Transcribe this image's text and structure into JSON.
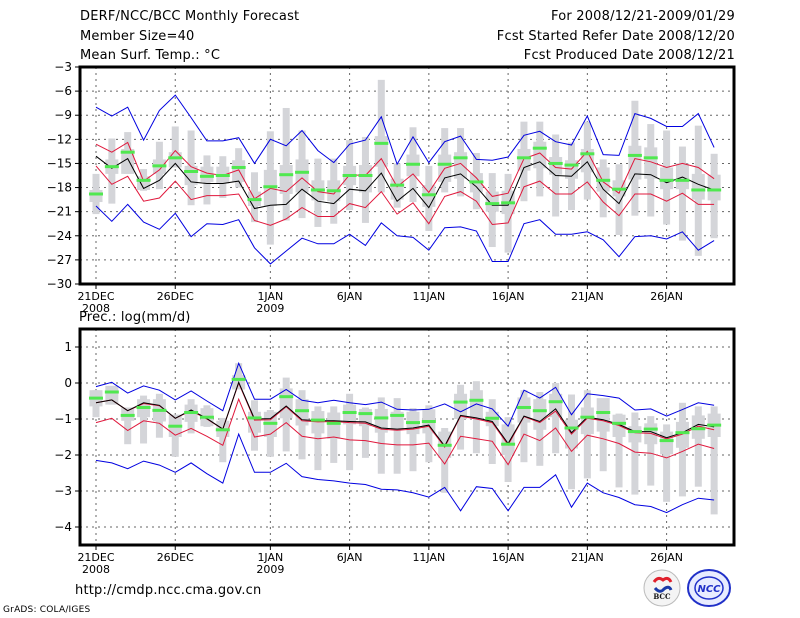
{
  "header": {
    "title": "DERF/NCC/BCC Monthly Forecast",
    "member_size": "Member Size=40",
    "top_variable": "Mean Surf. Temp.: °C",
    "period": "For 2008/12/21-2009/01/29",
    "started": "Fcst Started Refer Date 2008/12/20",
    "produced": "Fcst Produced Date 2008/12/21"
  },
  "footer": {
    "url": "http://cmdp.ncc.cma.gov.cn",
    "credit": "GrADS: COLA/IGES",
    "logos": [
      "BCC",
      "NCC"
    ]
  },
  "colors": {
    "mean": "#000000",
    "inner_band": "#e0183c",
    "outer_band": "#0000e0",
    "box": "#d4d5d9",
    "median": "#50e850",
    "grid": "#555555"
  },
  "chart_data": [
    {
      "type": "line",
      "title": "Mean Surf. Temp.: °C",
      "ylabel": "°C",
      "ylim": [
        -30,
        -3
      ],
      "yticks": [
        -3,
        -6,
        -9,
        -12,
        -15,
        -18,
        -21,
        -24,
        -27,
        -30
      ],
      "xtick_labels": [
        "21DEC",
        "26DEC",
        "1JAN",
        "6JAN",
        "11JAN",
        "16JAN",
        "21JAN",
        "26JAN"
      ],
      "xtick_days": [
        0,
        5,
        11,
        16,
        21,
        26,
        31,
        36
      ],
      "year_labels": [
        {
          "day": 0,
          "label": "2008"
        },
        {
          "day": 11,
          "label": "2009"
        }
      ],
      "grid": true,
      "n_days": 40,
      "series": [
        {
          "name": "max",
          "color": "#0000e0",
          "values": [
            -8,
            -9.1,
            -8,
            -12.1,
            -8.4,
            -6.5,
            -9.3,
            -12.2,
            -12.2,
            -11.8,
            -15,
            -12,
            -12.8,
            -10.9,
            -13.4,
            -14.9,
            -12.6,
            -12.1,
            -9.2,
            -15.1,
            -11.7,
            -14.9,
            -12.3,
            -11.6,
            -14.5,
            -14.6,
            -14.2,
            -11.5,
            -11.0,
            -12.3,
            -12.7,
            -9.1,
            -13.9,
            -14.0,
            -8.8,
            -9.4,
            -10.4,
            -10.4,
            -8.8,
            -13
          ]
        },
        {
          "name": "upper",
          "color": "#e0183c",
          "values": [
            -12.6,
            -13.6,
            -12.4,
            -17.2,
            -15.8,
            -13.4,
            -15.4,
            -16.2,
            -16.5,
            -15.8,
            -19.4,
            -18.1,
            -18.5,
            -16.8,
            -18.5,
            -18.8,
            -16.4,
            -16.5,
            -14.4,
            -17.9,
            -16.3,
            -18.6,
            -15.6,
            -15,
            -16.8,
            -19.1,
            -18.7,
            -14.4,
            -13.7,
            -15.5,
            -15.7,
            -13.5,
            -17.3,
            -18.7,
            -14.4,
            -14.8,
            -15.5,
            -15,
            -15.5,
            -16.9
          ]
        },
        {
          "name": "mean",
          "color": "#000000",
          "values": [
            -14.1,
            -15.6,
            -14.4,
            -18.1,
            -17.1,
            -15,
            -17.3,
            -17.5,
            -17.5,
            -17.2,
            -20.6,
            -20.2,
            -20.1,
            -18.2,
            -19.7,
            -20,
            -18.2,
            -18.4,
            -16.2,
            -19.7,
            -18.1,
            -20.5,
            -16.8,
            -16.3,
            -17.9,
            -20.2,
            -20.2,
            -15.5,
            -14.8,
            -16.5,
            -16.6,
            -14.8,
            -18.2,
            -20,
            -16.3,
            -16.4,
            -17.4,
            -16.7,
            -17.6,
            -18.3
          ]
        },
        {
          "name": "lower",
          "color": "#e0183c",
          "values": [
            -15.3,
            -17.6,
            -16.6,
            -19.7,
            -19.3,
            -17.2,
            -19.5,
            -19,
            -19,
            -18.8,
            -22.1,
            -22.7,
            -21.9,
            -20.5,
            -21.6,
            -21.6,
            -20,
            -20.5,
            -18.5,
            -21.3,
            -19.9,
            -22.5,
            -19.1,
            -18.5,
            -19.7,
            -22.6,
            -22.4,
            -17.9,
            -17.2,
            -18.8,
            -18.8,
            -17.3,
            -19.8,
            -21.5,
            -18.8,
            -18.8,
            -19.7,
            -18.7,
            -20.1,
            -20.1
          ]
        },
        {
          "name": "min",
          "color": "#0000e0",
          "values": [
            -20.3,
            -22.2,
            -20.1,
            -22.3,
            -23.2,
            -21.2,
            -24.1,
            -22.5,
            -22.6,
            -22,
            -25.5,
            -27.5,
            -25.9,
            -24.3,
            -25,
            -25,
            -23.8,
            -25.2,
            -22.4,
            -24,
            -24.2,
            -25.8,
            -23,
            -22.9,
            -23.4,
            -27.2,
            -27.2,
            -22.5,
            -22,
            -23.8,
            -23.8,
            -23.5,
            -24.5,
            -26.6,
            -24.1,
            -24,
            -24.4,
            -23.5,
            -25.8,
            -24.6
          ]
        },
        {
          "name": "median",
          "color": "#50e850",
          "values": [
            -18.8,
            -15.4,
            -13.6,
            -17.1,
            -15.3,
            -14.3,
            -16,
            -16.6,
            -16.5,
            -15.5,
            -19.5,
            -17.9,
            -16.4,
            -16.1,
            -18.3,
            -18.4,
            -16.5,
            -16.5,
            -12.5,
            -17.7,
            -15.1,
            -18.9,
            -15.1,
            -14.3,
            -17.3,
            -20,
            -19.9,
            -14.3,
            -13.1,
            -15,
            -15.2,
            -13.8,
            -17.1,
            -18.2,
            -14,
            -14.3,
            -17.1,
            -17.1,
            -18.3,
            -18.3
          ]
        },
        {
          "name": "box_inner",
          "color": "#d4d5d9",
          "values_low": [
            -19.8,
            -16.3,
            -16.3,
            -18.3,
            -16.3,
            -15.5,
            -17.7,
            -17.3,
            -17.5,
            -17.3,
            -20.3,
            -20.3,
            -18.8,
            -18.6,
            -19.6,
            -19.7,
            -17.7,
            -18.6,
            -15.4,
            -19.5,
            -16.6,
            -20.4,
            -17.3,
            -16.9,
            -18.6,
            -21,
            -21.3,
            -15.9,
            -15.6,
            -16.4,
            -16.9,
            -16.1,
            -18.5,
            -19.1,
            -17,
            -16.9,
            -18.2,
            -18.2,
            -19.5,
            -19.6
          ],
          "values_high": [
            -18.3,
            -14.5,
            -13.2,
            -16.6,
            -14.5,
            -13.6,
            -15.3,
            -15.4,
            -15.4,
            -14.6,
            -18.5,
            -15.8,
            -15.2,
            -14.5,
            -17.1,
            -17.1,
            -15.3,
            -15.2,
            -11.6,
            -16.9,
            -13.9,
            -17.7,
            -13.9,
            -13.6,
            -16.2,
            -18.5,
            -18.4,
            -13.2,
            -12.3,
            -14.2,
            -14.6,
            -13.2,
            -15.5,
            -17.1,
            -12.8,
            -13,
            -15.5,
            -15,
            -16.3,
            -16.4
          ]
        },
        {
          "name": "box_outer",
          "color": "#d4d5d9",
          "values_low": [
            -21.3,
            -20,
            -16.3,
            -18.4,
            -18.2,
            -15.3,
            -20.2,
            -20.1,
            -19.3,
            -18,
            -22.3,
            -25.1,
            -22.1,
            -21.8,
            -22.9,
            -22.5,
            -20.8,
            -22.4,
            -18.6,
            -20.5,
            -19.8,
            -23.4,
            -18.6,
            -19.1,
            -20.7,
            -25.4,
            -26.1,
            -19.7,
            -19.1,
            -21.6,
            -20.8,
            -19.5,
            -21.7,
            -23.9,
            -21.5,
            -21.6,
            -22.6,
            -24.6,
            -26.5,
            -24.3
          ],
          "values_high": [
            -16.3,
            -11.9,
            -11.1,
            -15.7,
            -12.3,
            -10.4,
            -10.9,
            -14,
            -14.1,
            -13.1,
            -16.1,
            -11,
            -8.1,
            -10.9,
            -14.4,
            -14.4,
            -12.1,
            -11.7,
            -4.6,
            -15,
            -10.5,
            -15.3,
            -10.6,
            -10.6,
            -13.7,
            -16.2,
            -16.3,
            -9.8,
            -9.8,
            -11.4,
            -12.4,
            -9.8,
            -14.5,
            -15.1,
            -7.2,
            -10.1,
            -10.9,
            -12.9,
            -10.3,
            -13.8
          ]
        }
      ]
    },
    {
      "type": "line",
      "title": "Prec.: log(mm/d)",
      "ylabel": "log(mm/d)",
      "ylim": [
        -4.5,
        1.5
      ],
      "yticks": [
        1,
        0,
        -1,
        -2,
        -3,
        -4
      ],
      "xtick_labels": [
        "21DEC",
        "26DEC",
        "1JAN",
        "6JAN",
        "11JAN",
        "16JAN",
        "21JAN",
        "26JAN"
      ],
      "xtick_days": [
        0,
        5,
        11,
        16,
        21,
        26,
        31,
        36
      ],
      "year_labels": [
        {
          "day": 0,
          "label": "2008"
        },
        {
          "day": 11,
          "label": "2009"
        }
      ],
      "grid": true,
      "n_days": 40,
      "series": [
        {
          "name": "max",
          "color": "#0000e0",
          "values": [
            -0.1,
            0.02,
            -0.28,
            -0.08,
            -0.2,
            -0.47,
            -0.22,
            -0.5,
            -0.77,
            0.55,
            -0.45,
            -0.45,
            -0.18,
            -0.48,
            -0.55,
            -0.48,
            -0.55,
            -0.6,
            -0.53,
            -0.73,
            -0.75,
            -0.73,
            -0.58,
            -0.8,
            -0.58,
            -0.72,
            -1.2,
            -0.2,
            -0.42,
            -0.12,
            -0.88,
            -0.3,
            -0.35,
            -0.42,
            -0.75,
            -0.72,
            -0.92,
            -0.74,
            -0.55,
            -0.62
          ]
        },
        {
          "name": "upper",
          "color": "#e0183c",
          "values": [
            -0.55,
            -0.47,
            -0.77,
            -0.57,
            -0.63,
            -0.98,
            -0.77,
            -1,
            -1.28,
            0.0,
            -1.03,
            -1.02,
            -0.66,
            -1.05,
            -1.08,
            -1.07,
            -1.1,
            -1.12,
            -1.28,
            -1.31,
            -1.28,
            -1.2,
            -1.78,
            -0.92,
            -1.0,
            -1.1,
            -1.72,
            -0.93,
            -1.1,
            -0.78,
            -1.42,
            -0.98,
            -1.05,
            -1.18,
            -1.38,
            -1.4,
            -1.55,
            -1.42,
            -1.2,
            -1.3
          ]
        },
        {
          "name": "mean",
          "color": "#000000",
          "values": [
            -0.55,
            -0.47,
            -0.77,
            -0.55,
            -0.62,
            -0.98,
            -0.75,
            -0.99,
            -1.28,
            0.02,
            -1.0,
            -0.99,
            -0.64,
            -1.02,
            -1.05,
            -1.05,
            -1.07,
            -1.08,
            -1.25,
            -1.28,
            -1.25,
            -1.17,
            -1.75,
            -0.9,
            -0.97,
            -1.07,
            -1.68,
            -0.92,
            -1.07,
            -0.72,
            -1.38,
            -0.95,
            -1.02,
            -1.15,
            -1.35,
            -1.35,
            -1.52,
            -1.38,
            -1.15,
            -1.22
          ]
        },
        {
          "name": "lower",
          "color": "#e0183c",
          "values": [
            -1.1,
            -0.98,
            -1.32,
            -1.05,
            -1.12,
            -1.45,
            -1.26,
            -1.48,
            -1.73,
            -0.45,
            -1.5,
            -1.42,
            -1.1,
            -1.48,
            -1.55,
            -1.5,
            -1.58,
            -1.6,
            -1.68,
            -1.72,
            -1.72,
            -1.67,
            -2.25,
            -1.48,
            -1.55,
            -1.62,
            -2.27,
            -1.42,
            -1.6,
            -1.25,
            -1.9,
            -1.45,
            -1.55,
            -1.68,
            -1.92,
            -1.95,
            -2.08,
            -1.9,
            -1.7,
            -1.82
          ]
        },
        {
          "name": "min",
          "color": "#0000e0",
          "values": [
            -2.15,
            -2.22,
            -2.38,
            -2.17,
            -2.28,
            -2.48,
            -2.22,
            -2.52,
            -2.78,
            -1.42,
            -2.48,
            -2.48,
            -2.23,
            -2.6,
            -2.68,
            -2.72,
            -2.78,
            -2.82,
            -2.95,
            -2.97,
            -3.05,
            -3.17,
            -2.9,
            -3.55,
            -2.88,
            -2.93,
            -3.55,
            -2.9,
            -2.9,
            -2.55,
            -3.45,
            -2.78,
            -3.05,
            -3.18,
            -3.38,
            -3.43,
            -3.6,
            -3.38,
            -3.2,
            -3.25
          ]
        },
        {
          "name": "median",
          "color": "#50e850",
          "values": [
            -0.42,
            -0.25,
            -0.9,
            -0.68,
            -0.76,
            -1.2,
            -0.82,
            -0.95,
            -1.3,
            0.1,
            -0.97,
            -1.12,
            -0.38,
            -0.77,
            -1.03,
            -1.12,
            -0.82,
            -0.85,
            -0.97,
            -0.9,
            -1.1,
            -1.07,
            -1.73,
            -0.53,
            -0.48,
            -0.98,
            -1.7,
            -0.68,
            -0.77,
            -0.52,
            -1.25,
            -0.95,
            -0.82,
            -1.12,
            -1.35,
            -1.28,
            -1.6,
            -1.38,
            -1.27,
            -1.17
          ]
        },
        {
          "name": "box_inner",
          "color": "#d4d5d9",
          "values_low": [
            -0.65,
            -0.6,
            -1.05,
            -0.95,
            -1.07,
            -1.5,
            -1.08,
            -1.2,
            -1.5,
            -0.18,
            -1.38,
            -1.5,
            -0.98,
            -1.18,
            -1.4,
            -1.55,
            -1.15,
            -1.2,
            -1.38,
            -1.3,
            -1.42,
            -1.4,
            -2.08,
            -1.0,
            -1.0,
            -1.2,
            -2.0,
            -1.1,
            -1.3,
            -0.95,
            -1.82,
            -1.42,
            -1.35,
            -1.5,
            -1.65,
            -1.7,
            -1.98,
            -1.8,
            -1.55,
            -1.5
          ],
          "values_high": [
            -0.2,
            -0.08,
            -0.68,
            -0.45,
            -0.45,
            -0.88,
            -0.6,
            -0.7,
            -1.05,
            0.22,
            -0.8,
            -0.8,
            -0.15,
            -0.45,
            -0.78,
            -0.82,
            -0.6,
            -0.72,
            -0.72,
            -0.8,
            -0.8,
            -0.73,
            -1.35,
            -0.3,
            -0.2,
            -0.8,
            -1.15,
            -0.4,
            -0.45,
            -0.3,
            -1.02,
            -0.68,
            -0.42,
            -0.88,
            -1.2,
            -1.12,
            -1.35,
            -1.08,
            -0.9,
            -0.85
          ]
        },
        {
          "name": "box_outer",
          "color": "#d4d5d9",
          "values_low": [
            -0.95,
            -0.6,
            -1.7,
            -1.68,
            -1.52,
            -2.05,
            -1.4,
            -1.22,
            -2.2,
            -0.18,
            -1.88,
            -2.05,
            -1.9,
            -2.12,
            -2.42,
            -2.22,
            -2.42,
            -2.08,
            -2.52,
            -2.52,
            -2.45,
            -2.2,
            -3.05,
            -1.85,
            -1.95,
            -2.25,
            -2.75,
            -2.2,
            -2.3,
            -1.95,
            -2.95,
            -2.65,
            -2.45,
            -2.9,
            -3.1,
            -2.85,
            -3.3,
            -3.15,
            -2.88,
            -3.65
          ],
          "values_high": [
            -0.2,
            -0.08,
            -0.7,
            -0.35,
            -0.3,
            -0.88,
            -0.45,
            -0.62,
            -0.97,
            0.55,
            -0.48,
            -0.75,
            0.15,
            -0.2,
            -0.65,
            -0.65,
            -0.3,
            -0.68,
            -0.4,
            -0.42,
            -0.7,
            -0.62,
            -1.25,
            -0.05,
            0.05,
            -0.45,
            -0.95,
            -0.2,
            -0.25,
            0.0,
            -0.32,
            -0.2,
            -0.45,
            -0.85,
            -0.82,
            -0.92,
            -1.15,
            -0.55,
            -0.65,
            -0.65
          ]
        }
      ]
    }
  ]
}
